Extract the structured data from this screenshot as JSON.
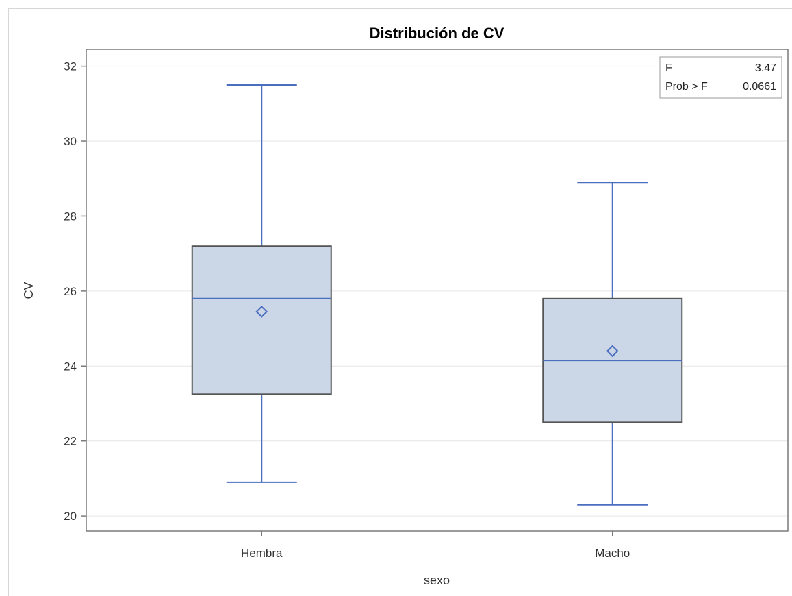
{
  "chart_data": {
    "type": "box",
    "title": "Distribución de CV",
    "xlabel": "sexo",
    "ylabel": "CV",
    "ylim": [
      19.6,
      32.45
    ],
    "yticks": [
      20,
      22,
      24,
      26,
      28,
      30,
      32
    ],
    "grid": true,
    "categories": [
      "Hembra",
      "Macho"
    ],
    "boxes": [
      {
        "category": "Hembra",
        "min": 20.9,
        "q1": 23.25,
        "median": 25.8,
        "q3": 27.2,
        "max": 31.5,
        "mean": 25.45
      },
      {
        "category": "Macho",
        "min": 20.3,
        "q1": 22.5,
        "median": 24.15,
        "q3": 25.8,
        "max": 28.9,
        "mean": 24.4
      }
    ],
    "inset": {
      "placement": "top-right",
      "rows": [
        {
          "label": "F",
          "value": "3.47"
        },
        {
          "label": "Prob > F",
          "value": "0.0661"
        }
      ]
    },
    "colors": {
      "box_fill": "#cbd6e6",
      "box_edge": "#555555",
      "whisker": "#4b6fbf",
      "median": "#4b6fbf",
      "mean_marker": "#4b6fbf",
      "grid": "#e6e6e6",
      "axis": "#7a7a7a"
    }
  }
}
